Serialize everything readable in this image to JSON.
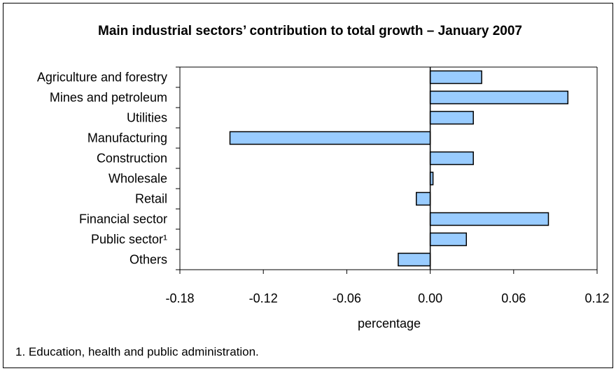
{
  "chart_data": {
    "type": "bar",
    "orientation": "horizontal",
    "title": "Main industrial sectors’ contribution to total growth – January 2007",
    "xlabel": "percentage",
    "ylabel": "",
    "categories": [
      "Agriculture and forestry",
      "Mines and petroleum",
      "Utilities",
      "Manufacturing",
      "Construction",
      "Wholesale",
      "Retail",
      "Financial sector",
      "Public sector¹",
      "Others"
    ],
    "values": [
      0.037,
      0.099,
      0.031,
      -0.144,
      0.031,
      0.002,
      -0.01,
      0.085,
      0.026,
      -0.023
    ],
    "xlim": [
      -0.18,
      0.12
    ],
    "xticks": [
      "-0.18",
      "-0.12",
      "-0.06",
      "0.00",
      "0.06",
      "0.12"
    ],
    "grid": false,
    "bar_color": "#99ccff",
    "bar_edge_color": "#000000"
  },
  "footnote": "1. Education, health and public administration."
}
